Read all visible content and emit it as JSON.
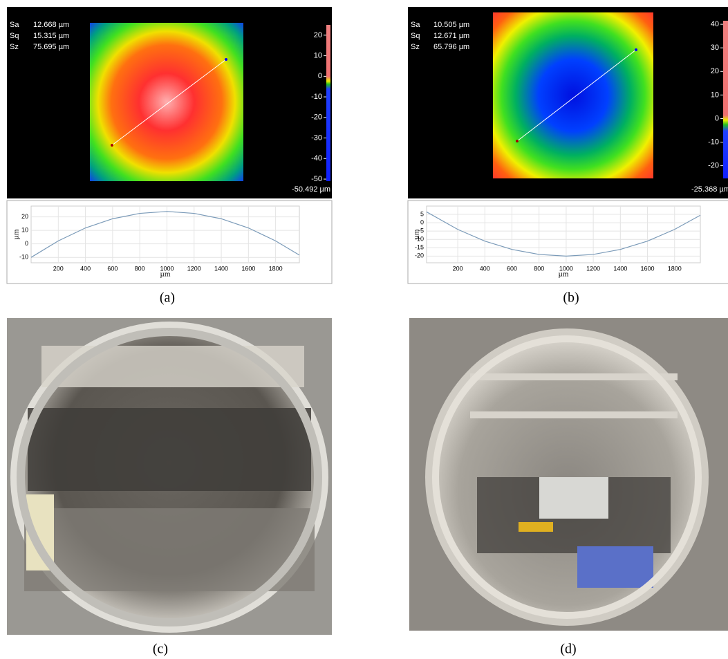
{
  "panels": [
    {
      "caption": "(a)",
      "stats": [
        {
          "name": "Sa",
          "value": "12.668 µm"
        },
        {
          "name": "Sq",
          "value": "15.315 µm"
        },
        {
          "name": "Sz",
          "value": "75.695 µm"
        }
      ],
      "colorbar": {
        "lim": [
          -51,
          25
        ],
        "ticks": [
          20,
          10,
          0,
          -10,
          -20,
          -30,
          -40,
          -50
        ],
        "min_label": "-50.492 µm"
      },
      "profile": {
        "type": "line",
        "x": [
          0,
          200,
          400,
          600,
          800,
          1000,
          1200,
          1400,
          1600,
          1800,
          1975
        ],
        "values": [
          -10,
          2.2,
          11.8,
          18.6,
          22.6,
          24,
          22.6,
          18.6,
          11.8,
          2.2,
          -8.3
        ],
        "xlim": [
          0,
          1975
        ],
        "ylim": [
          -14,
          28
        ],
        "xticks": [
          200,
          400,
          600,
          800,
          1000,
          1200,
          1400,
          1600,
          1800
        ],
        "yticks": [
          20,
          10,
          0,
          -10
        ],
        "xlabel": "µm",
        "ylabel": "µm"
      }
    },
    {
      "caption": "(b)",
      "stats": [
        {
          "name": "Sa",
          "value": "10.505 µm"
        },
        {
          "name": "Sq",
          "value": "12.671 µm"
        },
        {
          "name": "Sz",
          "value": "65.796 µm"
        }
      ],
      "colorbar": {
        "lim": [
          -25.4,
          41.5
        ],
        "ticks": [
          40,
          30,
          20,
          10,
          0,
          -10,
          -20
        ],
        "min_label": "-25.368 µm"
      },
      "profile": {
        "type": "line",
        "x": [
          -30,
          200,
          400,
          600,
          800,
          1000,
          1200,
          1400,
          1600,
          1800,
          1990
        ],
        "values": [
          6.5,
          -4,
          -11,
          -16,
          -19,
          -20,
          -19,
          -16,
          -11,
          -4,
          4.5
        ],
        "xlim": [
          -30,
          1990
        ],
        "ylim": [
          -24,
          10
        ],
        "xticks": [
          200,
          400,
          600,
          800,
          1000,
          1200,
          1400,
          1600,
          1800
        ],
        "yticks": [
          5,
          0,
          -5,
          -10,
          -15,
          -20
        ],
        "xlabel": "µm",
        "ylabel": "µm"
      }
    },
    {
      "caption": "(c)"
    },
    {
      "caption": "(d)"
    }
  ]
}
